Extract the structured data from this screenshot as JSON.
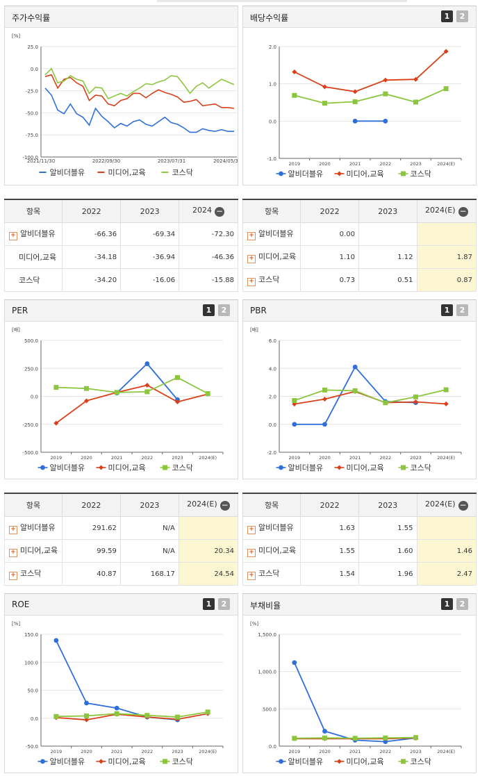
{
  "panels": [
    {
      "id": "stock",
      "title": "주가수익률",
      "buttons": [],
      "unit": "[%]",
      "chart_data": {
        "type": "line",
        "x_ticks": [
          "2021/11/30",
          "2022/09/30",
          "2023/07/31",
          "2024/05/3"
        ],
        "y_ticks": [
          "25.0",
          "0.0",
          "-25.0",
          "-50.0",
          "-75.0",
          "-100.0"
        ],
        "ylim": [
          -100,
          25
        ],
        "series": [
          {
            "name": "알비더블유",
            "color": "#2e6fd9",
            "values": [
              -22,
              -30,
              -47,
              -51,
              -40,
              -51,
              -55,
              -64,
              -45,
              -54,
              -60,
              -67,
              -62,
              -65,
              -60,
              -58,
              -63,
              -65,
              -60,
              -55,
              -61,
              -63,
              -67,
              -72,
              -72,
              -68,
              -70,
              -71,
              -69,
              -71,
              -71
            ]
          },
          {
            "name": "미디어,교육",
            "color": "#d9401a",
            "values": [
              -9,
              -7,
              -22,
              -12,
              -10,
              -16,
              -20,
              -36,
              -30,
              -31,
              -40,
              -42,
              -36,
              -34,
              -28,
              -28,
              -33,
              -28,
              -24,
              -27,
              -29,
              -32,
              -38,
              -37,
              -35,
              -42,
              -41,
              -40,
              -44,
              -44,
              -45
            ]
          },
          {
            "name": "코스닥",
            "color": "#8cc63f",
            "values": [
              -7,
              0,
              -16,
              -14,
              -8,
              -12,
              -14,
              -28,
              -21,
              -22,
              -34,
              -31,
              -28,
              -31,
              -26,
              -22,
              -17,
              -18,
              -15,
              -13,
              -8,
              -9,
              -18,
              -28,
              -20,
              -16,
              -22,
              -17,
              -12,
              -15,
              -18
            ]
          }
        ]
      }
    },
    {
      "id": "dividend",
      "title": "배당수익률",
      "buttons": [
        "1",
        "2"
      ],
      "unit": "",
      "chart_data": {
        "type": "line",
        "categories": [
          "2019",
          "2020",
          "2021",
          "2022",
          "2023",
          "2024(E)"
        ],
        "y_ticks": [
          "2.0",
          "1.0",
          "0.0",
          "-1.0"
        ],
        "ylim": [
          -1,
          2
        ],
        "series": [
          {
            "name": "알비더블유",
            "color": "#2e6fd9",
            "marker": "circle",
            "values": [
              null,
              null,
              0,
              0,
              null,
              null
            ]
          },
          {
            "name": "미디어,교육",
            "color": "#d9401a",
            "marker": "diamond",
            "values": [
              1.32,
              0.92,
              0.79,
              1.1,
              1.12,
              1.87
            ]
          },
          {
            "name": "코스닥",
            "color": "#8cc63f",
            "marker": "square",
            "values": [
              0.69,
              0.48,
              0.52,
              0.73,
              0.51,
              0.87
            ]
          }
        ]
      }
    },
    {
      "id": "per",
      "title": "PER",
      "buttons": [
        "1",
        "2"
      ],
      "unit": "[배]",
      "chart_data": {
        "type": "line",
        "categories": [
          "2019",
          "2020",
          "2021",
          "2022",
          "2023",
          "2024(E)"
        ],
        "y_ticks": [
          "500.0",
          "250.0",
          "0.0",
          "-250.0",
          "-500.0"
        ],
        "ylim": [
          -500,
          500
        ],
        "series": [
          {
            "name": "알비더블유",
            "color": "#2e6fd9",
            "marker": "circle",
            "values": [
              null,
              null,
              30,
              291.62,
              -30,
              null
            ]
          },
          {
            "name": "미디어,교육",
            "color": "#d9401a",
            "marker": "diamond",
            "values": [
              -240,
              -40,
              35,
              99.59,
              -50,
              20.34
            ]
          },
          {
            "name": "코스닥",
            "color": "#8cc63f",
            "marker": "square",
            "values": [
              80,
              70,
              35,
              40.87,
              168.17,
              24.54
            ]
          }
        ]
      }
    },
    {
      "id": "pbr",
      "title": "PBR",
      "buttons": [
        "1",
        "2"
      ],
      "unit": "[배]",
      "chart_data": {
        "type": "line",
        "categories": [
          "2019",
          "2020",
          "2021",
          "2022",
          "2023",
          "2024(E)"
        ],
        "y_ticks": [
          "6.0",
          "4.0",
          "2.0",
          "0.0",
          "-2.0"
        ],
        "ylim": [
          -2,
          6
        ],
        "series": [
          {
            "name": "알비더블유",
            "color": "#2e6fd9",
            "marker": "circle",
            "values": [
              0,
              0,
              4.1,
              1.63,
              1.55,
              null
            ]
          },
          {
            "name": "미디어,교육",
            "color": "#d9401a",
            "marker": "diamond",
            "values": [
              1.45,
              1.8,
              2.35,
              1.55,
              1.6,
              1.46
            ]
          },
          {
            "name": "코스닥",
            "color": "#8cc63f",
            "marker": "square",
            "values": [
              1.7,
              2.45,
              2.4,
              1.54,
              1.96,
              2.47
            ]
          }
        ]
      }
    },
    {
      "id": "roe",
      "title": "ROE",
      "buttons": [
        "1",
        "2"
      ],
      "unit": "[%]",
      "chart_data": {
        "type": "line",
        "categories": [
          "2019",
          "2020",
          "2021",
          "2022",
          "2023",
          "2024(E)"
        ],
        "y_ticks": [
          "150.0",
          "100.0",
          "50.0",
          "0.0",
          "-50.0"
        ],
        "ylim": [
          -50,
          150
        ],
        "series": [
          {
            "name": "알비더블유",
            "color": "#2e6fd9",
            "marker": "circle",
            "values": [
              139,
              27,
              18,
              2,
              -3,
              null
            ]
          },
          {
            "name": "미디어,교육",
            "color": "#d9401a",
            "marker": "diamond",
            "values": [
              1,
              -3,
              7,
              2,
              -2,
              8
            ]
          },
          {
            "name": "코스닥",
            "color": "#8cc63f",
            "marker": "square",
            "values": [
              3,
              4,
              8,
              5,
              2,
              11
            ]
          }
        ]
      }
    },
    {
      "id": "debt",
      "title": "부채비율",
      "buttons": [
        "1",
        "2"
      ],
      "unit": "[%]",
      "chart_data": {
        "type": "line",
        "categories": [
          "2019",
          "2020",
          "2021",
          "2022",
          "2023",
          "2024(E)"
        ],
        "y_ticks": [
          "1,500.0",
          "1,000.0",
          "500.0",
          "0.0"
        ],
        "ylim": [
          0,
          1500
        ],
        "series": [
          {
            "name": "알비더블유",
            "color": "#2e6fd9",
            "marker": "circle",
            "values": [
              1120,
              200,
              80,
              60,
              110,
              null
            ]
          },
          {
            "name": "미디어,교육",
            "color": "#d9401a",
            "marker": "diamond",
            "values": [
              100,
              100,
              100,
              100,
              110,
              null
            ]
          },
          {
            "name": "코스닥",
            "color": "#8cc63f",
            "marker": "square",
            "values": [
              105,
              110,
              105,
              110,
              115,
              null
            ]
          }
        ]
      }
    }
  ],
  "tables": {
    "stock": {
      "headers": [
        "항목",
        "2022",
        "2023",
        "2024"
      ],
      "rows": [
        {
          "name": "알비더블유",
          "plus": true,
          "cells": [
            "-66.36",
            "-69.34",
            "-72.30"
          ]
        },
        {
          "name": "미디어,교육",
          "plus": false,
          "cells": [
            "-34.18",
            "-36.94",
            "-46.36"
          ]
        },
        {
          "name": "코스닥",
          "plus": false,
          "cells": [
            "-34.20",
            "-16.06",
            "-15.88"
          ]
        }
      ]
    },
    "dividend": {
      "headers": [
        "항목",
        "2022",
        "2023",
        "2024(E)"
      ],
      "rows": [
        {
          "name": "알비더블유",
          "plus": true,
          "cells": [
            "0.00",
            "",
            ""
          ]
        },
        {
          "name": "미디어,교육",
          "plus": true,
          "cells": [
            "1.10",
            "1.12",
            "1.87"
          ]
        },
        {
          "name": "코스닥",
          "plus": true,
          "cells": [
            "0.73",
            "0.51",
            "0.87"
          ]
        }
      ]
    },
    "per": {
      "headers": [
        "항목",
        "2022",
        "2023",
        "2024(E)"
      ],
      "rows": [
        {
          "name": "알비더블유",
          "plus": true,
          "cells": [
            "291.62",
            "N/A",
            ""
          ]
        },
        {
          "name": "미디어,교육",
          "plus": true,
          "cells": [
            "99.59",
            "N/A",
            "20.34"
          ]
        },
        {
          "name": "코스닥",
          "plus": true,
          "cells": [
            "40.87",
            "168.17",
            "24.54"
          ]
        }
      ]
    },
    "pbr": {
      "headers": [
        "항목",
        "2022",
        "2023",
        "2024(E)"
      ],
      "rows": [
        {
          "name": "알비더블유",
          "plus": true,
          "cells": [
            "1.63",
            "1.55",
            ""
          ]
        },
        {
          "name": "미디어,교육",
          "plus": true,
          "cells": [
            "1.55",
            "1.60",
            "1.46"
          ]
        },
        {
          "name": "코스닥",
          "plus": true,
          "cells": [
            "1.54",
            "1.96",
            "2.47"
          ]
        }
      ]
    }
  },
  "icons": {
    "expand": "+",
    "collapse": "−"
  }
}
